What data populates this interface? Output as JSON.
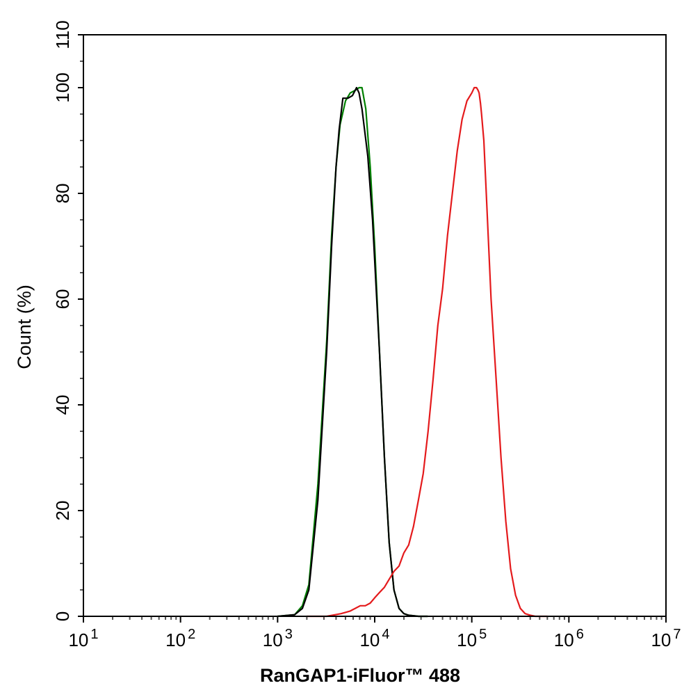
{
  "chart_data": {
    "type": "line",
    "title": "",
    "xlabel": "RanGAP1-iFluor™ 488",
    "ylabel": "Count  (%)",
    "xscale": "log",
    "xlim": [
      10,
      10000000
    ],
    "ylim": [
      0,
      110
    ],
    "xticks": [
      {
        "value": 10,
        "base": "10",
        "exp": "1"
      },
      {
        "value": 100,
        "base": "10",
        "exp": "2"
      },
      {
        "value": 1000,
        "base": "10",
        "exp": "3"
      },
      {
        "value": 10000,
        "base": "10",
        "exp": "4"
      },
      {
        "value": 100000,
        "base": "10",
        "exp": "5"
      },
      {
        "value": 1000000,
        "base": "10",
        "exp": "6"
      },
      {
        "value": 10000000,
        "base": "10",
        "exp": "7"
      }
    ],
    "yticks": [
      {
        "value": 0,
        "label": "0"
      },
      {
        "value": 20,
        "label": "20"
      },
      {
        "value": 40,
        "label": "40"
      },
      {
        "value": 60,
        "label": "60"
      },
      {
        "value": 80,
        "label": "80"
      },
      {
        "value": 100,
        "label": "100"
      },
      {
        "value": 110,
        "label": "110"
      }
    ],
    "grid": false,
    "legend": "none",
    "series": [
      {
        "color": "#008000",
        "x": [
          1000,
          1500,
          1800,
          2100,
          2600,
          3200,
          3600,
          4000,
          4400,
          5000,
          5600,
          6300,
          6900,
          7400,
          8100,
          9000,
          10000,
          11200,
          12600,
          14100,
          15800,
          17800,
          20000,
          22400,
          28200,
          35000
        ],
        "y": [
          0,
          0.3,
          2,
          6,
          25,
          52,
          72,
          85,
          93,
          97.5,
          99,
          99.5,
          100,
          100,
          96,
          85,
          70,
          50,
          30,
          14,
          5,
          1.5,
          0.5,
          0.2,
          0,
          0
        ]
      },
      {
        "color": "#000000",
        "x": [
          1000,
          1500,
          1800,
          2100,
          2600,
          3200,
          3600,
          4000,
          4300,
          4700,
          5300,
          5900,
          6500,
          6900,
          7400,
          8500,
          9500,
          11200,
          12600,
          14100,
          15800,
          17800,
          20000,
          22400,
          28200,
          35000
        ],
        "y": [
          0,
          0.3,
          1.5,
          5,
          22,
          50,
          70,
          85,
          92,
          98,
          98,
          98.5,
          100,
          99,
          96,
          87,
          75,
          50,
          30,
          14,
          5,
          1.5,
          0.5,
          0.2,
          0,
          0
        ]
      },
      {
        "color": "#e41a1c",
        "x": [
          2000,
          3200,
          4500,
          5600,
          6300,
          7100,
          8000,
          9000,
          10000,
          11200,
          12600,
          14100,
          15800,
          17800,
          20000,
          22400,
          25100,
          28200,
          31600,
          35500,
          40000,
          44700,
          50100,
          56200,
          63100,
          70800,
          79400,
          89100,
          100000,
          106000,
          112000,
          116000,
          119000,
          123000,
          126000,
          133000,
          141000,
          158000,
          178000,
          200000,
          224000,
          251000,
          282000,
          316000,
          355000,
          400000,
          450000,
          501000,
          600000
        ],
        "y": [
          0,
          0,
          0.5,
          1,
          1.5,
          2,
          2,
          2.5,
          3.5,
          4.5,
          5.5,
          7,
          8.5,
          9.5,
          12,
          13.5,
          17,
          22,
          27,
          35,
          45,
          55,
          62,
          72,
          80,
          88,
          94,
          97.5,
          99,
          100,
          100,
          99.5,
          99,
          97,
          95,
          90,
          80,
          60,
          45,
          30,
          18,
          9,
          4,
          1.5,
          0.5,
          0.2,
          0,
          0,
          0
        ]
      }
    ]
  }
}
